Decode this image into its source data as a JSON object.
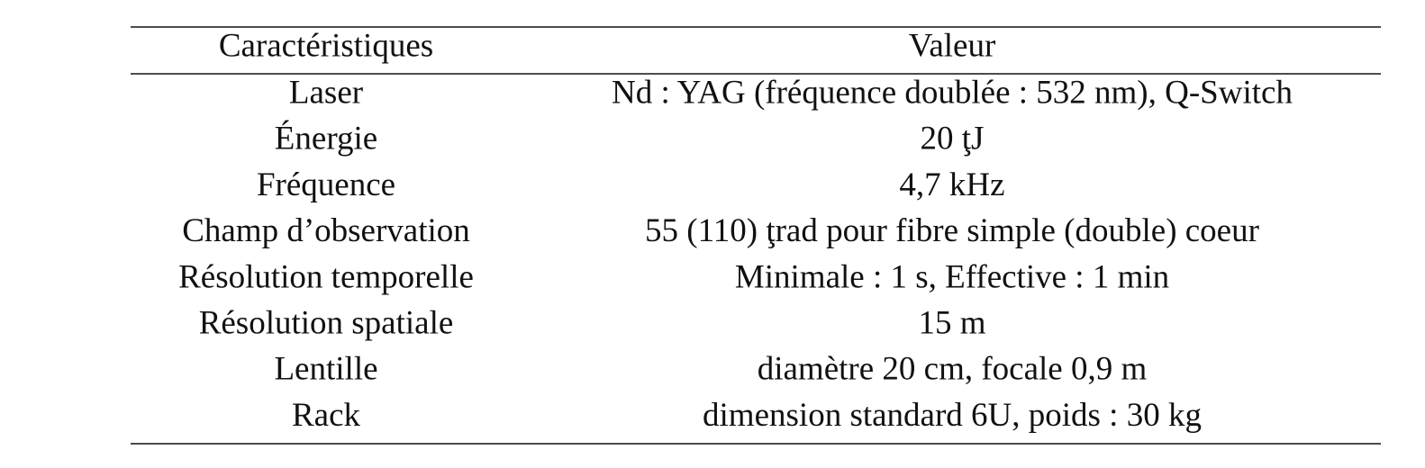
{
  "table": {
    "header": [
      "Caractéristiques",
      "Valeur"
    ],
    "rows": [
      [
        "Laser",
        "Nd : YAG (fréquence doublée : 532 nm), Q-Switch"
      ],
      [
        "Énergie",
        "20 ţJ"
      ],
      [
        "Fréquence",
        "4,7 kHz"
      ],
      [
        "Champ d’observation",
        "55 (110) ţrad pour fibre simple (double) coeur"
      ],
      [
        "Résolution temporelle",
        "Minimale : 1 s, Effective : 1 min"
      ],
      [
        "Résolution spatiale",
        "15 m"
      ],
      [
        "Lentille",
        "diamètre 20 cm, focale 0,9 m"
      ],
      [
        "Rack",
        "dimension standard 6U, poids : 30 kg"
      ]
    ]
  }
}
